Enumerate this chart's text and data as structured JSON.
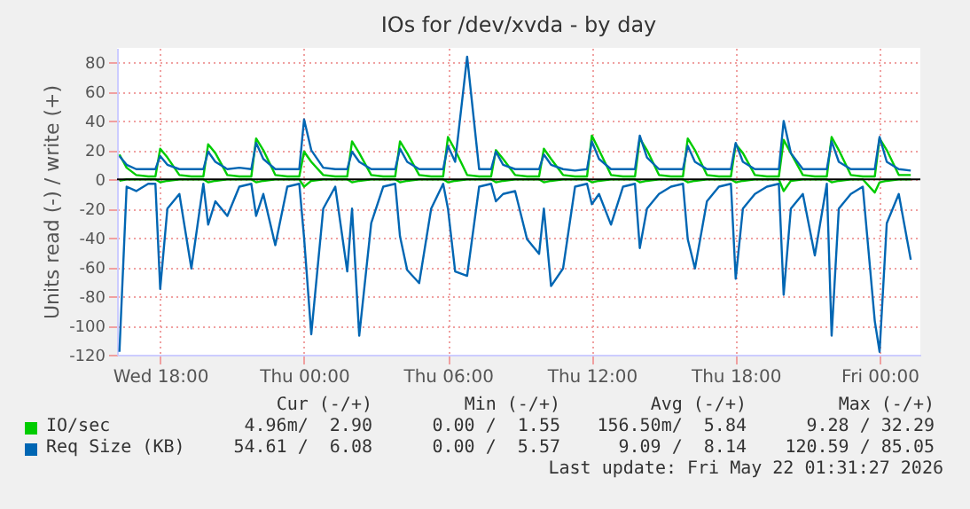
{
  "chart_data": {
    "type": "line",
    "title": "IOs for /dev/xvda - by day",
    "ylabel": "Units read (-) / write (+)",
    "x": [
      "2026-05-20T16:18",
      "2026-05-20T16:36",
      "2026-05-20T17:00",
      "2026-05-20T17:30",
      "2026-05-20T17:48",
      "2026-05-20T18:00",
      "2026-05-20T18:18",
      "2026-05-20T18:48",
      "2026-05-20T19:18",
      "2026-05-20T19:48",
      "2026-05-20T20:00",
      "2026-05-20T20:18",
      "2026-05-20T20:48",
      "2026-05-20T21:18",
      "2026-05-20T21:48",
      "2026-05-20T22:00",
      "2026-05-20T22:18",
      "2026-05-20T22:48",
      "2026-05-20T23:18",
      "2026-05-20T23:48",
      "2026-05-21T00:00",
      "2026-05-21T00:18",
      "2026-05-21T00:48",
      "2026-05-21T01:18",
      "2026-05-21T01:48",
      "2026-05-21T02:00",
      "2026-05-21T02:18",
      "2026-05-21T02:48",
      "2026-05-21T03:18",
      "2026-05-21T03:48",
      "2026-05-21T04:00",
      "2026-05-21T04:18",
      "2026-05-21T04:48",
      "2026-05-21T05:18",
      "2026-05-21T05:48",
      "2026-05-21T06:00",
      "2026-05-21T06:18",
      "2026-05-21T06:48",
      "2026-05-21T07:18",
      "2026-05-21T07:48",
      "2026-05-21T08:00",
      "2026-05-21T08:18",
      "2026-05-21T08:48",
      "2026-05-21T09:18",
      "2026-05-21T09:48",
      "2026-05-21T10:00",
      "2026-05-21T10:18",
      "2026-05-21T10:48",
      "2026-05-21T11:18",
      "2026-05-21T11:48",
      "2026-05-21T12:00",
      "2026-05-21T12:18",
      "2026-05-21T12:48",
      "2026-05-21T13:18",
      "2026-05-21T13:48",
      "2026-05-21T14:00",
      "2026-05-21T14:18",
      "2026-05-21T14:48",
      "2026-05-21T15:18",
      "2026-05-21T15:48",
      "2026-05-21T16:00",
      "2026-05-21T16:18",
      "2026-05-21T16:48",
      "2026-05-21T17:18",
      "2026-05-21T17:48",
      "2026-05-21T18:00",
      "2026-05-21T18:18",
      "2026-05-21T18:48",
      "2026-05-21T19:18",
      "2026-05-21T19:48",
      "2026-05-21T20:00",
      "2026-05-21T20:18",
      "2026-05-21T20:48",
      "2026-05-21T21:18",
      "2026-05-21T21:48",
      "2026-05-21T22:00",
      "2026-05-21T22:18",
      "2026-05-21T22:48",
      "2026-05-21T23:18",
      "2026-05-21T23:48",
      "2026-05-22T00:00",
      "2026-05-22T00:18",
      "2026-05-22T00:48",
      "2026-05-22T01:18"
    ],
    "series": [
      {
        "name": "IO/sec",
        "color": "#00cc00",
        "values": [
          17,
          8,
          3,
          2,
          2,
          21,
          15,
          3,
          2,
          2,
          24,
          18,
          3,
          2,
          2,
          28,
          20,
          3,
          2,
          2,
          19,
          12,
          3,
          2,
          2,
          26,
          18,
          3,
          2,
          2,
          26,
          18,
          3,
          2,
          2,
          29,
          20,
          3,
          2,
          2,
          20,
          14,
          3,
          2,
          2,
          21,
          14,
          3,
          2,
          2,
          30,
          20,
          3,
          2,
          2,
          28,
          20,
          3,
          2,
          2,
          28,
          20,
          3,
          2,
          2,
          24,
          18,
          3,
          2,
          2,
          27,
          18,
          3,
          2,
          2,
          29,
          20,
          3,
          2,
          2,
          28,
          20,
          3,
          3
        ]
      },
      {
        "color": "#00cc00",
        "values": [
          -1,
          0,
          0,
          0,
          0,
          -2,
          -1,
          0,
          0,
          0,
          -2,
          -1,
          0,
          0,
          0,
          -2,
          -1,
          0,
          0,
          0,
          -5,
          -1,
          0,
          0,
          0,
          -2,
          -1,
          0,
          0,
          0,
          -2,
          -1,
          0,
          0,
          0,
          -2,
          -1,
          0,
          0,
          0,
          -2,
          -1,
          0,
          0,
          0,
          -2,
          -1,
          0,
          0,
          0,
          -2,
          -1,
          0,
          0,
          0,
          -2,
          -1,
          0,
          0,
          0,
          -2,
          -1,
          0,
          0,
          0,
          -2,
          -1,
          0,
          0,
          0,
          -8,
          -1,
          0,
          0,
          0,
          -2,
          -1,
          0,
          0,
          -9,
          -2,
          -1,
          0,
          0
        ]
      },
      {
        "name": "Req Size (KB)",
        "color": "#0066b3",
        "values": [
          16,
          10,
          7,
          7,
          7,
          16,
          10,
          7,
          7,
          7,
          19,
          12,
          7,
          8,
          7,
          25,
          14,
          7,
          7,
          7,
          41,
          20,
          8,
          7,
          7,
          19,
          12,
          7,
          7,
          7,
          21,
          12,
          7,
          7,
          7,
          23,
          12,
          84,
          7,
          7,
          19,
          10,
          7,
          7,
          7,
          17,
          10,
          7,
          6,
          7,
          26,
          14,
          7,
          7,
          7,
          30,
          15,
          7,
          7,
          7,
          23,
          12,
          7,
          7,
          7,
          25,
          12,
          7,
          7,
          7,
          40,
          18,
          7,
          7,
          7,
          26,
          12,
          7,
          7,
          7,
          29,
          12,
          7,
          6
        ]
      },
      {
        "color": "#0066b3",
        "values": [
          -118,
          -5,
          -8,
          -3,
          -3,
          -75,
          -20,
          -10,
          -61,
          -3,
          -31,
          -15,
          -25,
          -5,
          -3,
          -25,
          -10,
          -45,
          -5,
          -3,
          -40,
          -106,
          -20,
          -5,
          -63,
          -20,
          -107,
          -30,
          -5,
          -3,
          -39,
          -62,
          -71,
          -20,
          -3,
          -20,
          -63,
          -66,
          -5,
          -3,
          -15,
          -10,
          -8,
          -41,
          -51,
          -20,
          -73,
          -61,
          -5,
          -3,
          -17,
          -10,
          -31,
          -5,
          -3,
          -47,
          -20,
          -10,
          -5,
          -3,
          -41,
          -61,
          -15,
          -5,
          -3,
          -68,
          -20,
          -10,
          -5,
          -3,
          -79,
          -20,
          -10,
          -52,
          -3,
          -107,
          -20,
          -10,
          -5,
          -97,
          -118,
          -30,
          -10,
          -55
        ]
      }
    ],
    "xlim": [
      "2026-05-20T16:12",
      "2026-05-22T01:42"
    ],
    "xticks": [
      {
        "value": "2026-05-20T18:00",
        "label": "Wed 18:00"
      },
      {
        "value": "2026-05-21T00:00",
        "label": "Thu 00:00"
      },
      {
        "value": "2026-05-21T06:00",
        "label": "Thu 06:00"
      },
      {
        "value": "2026-05-21T12:00",
        "label": "Thu 12:00"
      },
      {
        "value": "2026-05-21T18:00",
        "label": "Thu 18:00"
      },
      {
        "value": "2026-05-22T00:00",
        "label": "Fri 00:00"
      }
    ],
    "ylim": [
      -120,
      90
    ],
    "yticks": [
      -120,
      -100,
      -80,
      -60,
      -40,
      -20,
      0,
      20,
      40,
      60,
      80
    ],
    "grid": true,
    "legend": "bottom",
    "ref_lines": [
      {
        "axis": "y",
        "value": 0,
        "color": "#000000"
      }
    ],
    "annotations": [
      "Cur (-/+)",
      "Min (-/+)",
      "Avg (-/+)",
      "Max (-/+)",
      "4.96m/  2.90",
      "0.00 /  1.55",
      "156.50m/  5.84",
      "9.28 / 32.29",
      "54.61 /  6.08",
      "0.00 /  5.57",
      "9.09 /  8.14",
      "120.59 / 85.05",
      "Last update: Fri May 22 01:31:27 2026"
    ]
  }
}
